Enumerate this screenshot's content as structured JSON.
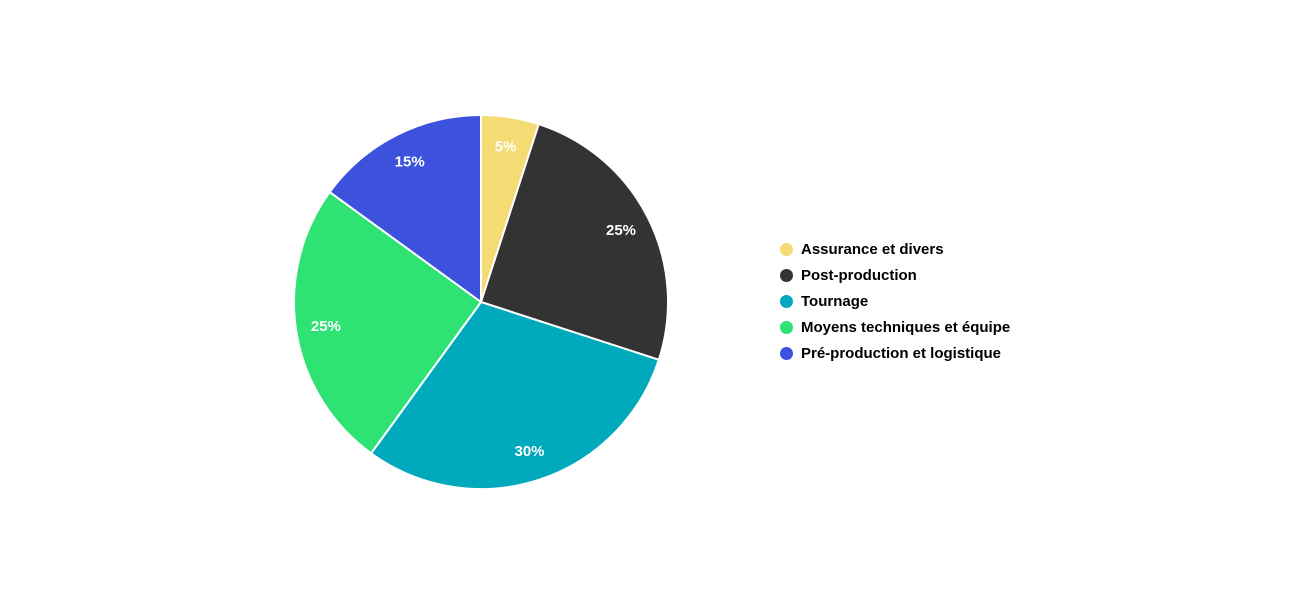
{
  "page": {
    "background_color": "#ffffff"
  },
  "chart_data": {
    "type": "pie",
    "title": "",
    "unit": "%",
    "start_angle_deg": 0,
    "direction": "clockwise",
    "legend_position": "right",
    "data_label_color": "#ffffff",
    "slice_border_color": "#ffffff",
    "categories": [
      "Assurance et divers",
      "Post-production",
      "Tournage",
      "Moyens techniques et équipe",
      "Pré-production et logistique"
    ],
    "values": [
      5,
      25,
      30,
      25,
      15
    ],
    "slices": [
      {
        "label": "Assurance et divers",
        "value": 5,
        "data_label": "5%",
        "color": "#F5DB73"
      },
      {
        "label": "Post-production",
        "value": 25,
        "data_label": "25%",
        "color": "#333333"
      },
      {
        "label": "Tournage",
        "value": 30,
        "data_label": "30%",
        "color": "#00A9BB"
      },
      {
        "label": "Moyens techniques et équipe",
        "value": 25,
        "data_label": "25%",
        "color": "#2EE274"
      },
      {
        "label": "Pré-production et logistique",
        "value": 15,
        "data_label": "15%",
        "color": "#3C51DC"
      }
    ]
  }
}
